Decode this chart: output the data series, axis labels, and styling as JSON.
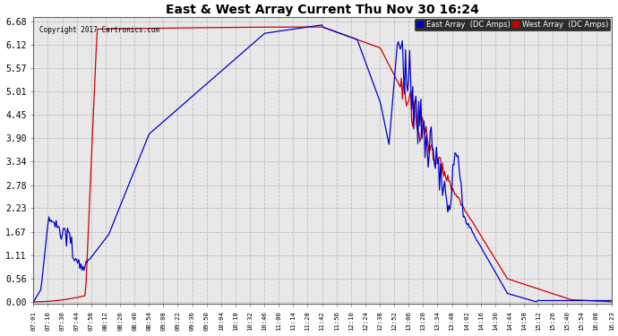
{
  "title": "East & West Array Current Thu Nov 30 16:24",
  "copyright": "Copyright 2017 Cartronics.com",
  "legend_east": "East Array  (DC Amps)",
  "legend_west": "West Array  (DC Amps)",
  "east_color": "#0000cc",
  "west_color": "#cc0000",
  "background_color": "#ffffff",
  "grid_color": "#bbbbbb",
  "plot_bg_color": "#e8e8e8",
  "yticks": [
    0.0,
    0.56,
    1.11,
    1.67,
    2.23,
    2.78,
    3.34,
    3.9,
    4.45,
    5.01,
    5.57,
    6.12,
    6.68
  ],
  "ymax": 6.68,
  "ymin": 0.0,
  "x_labels": [
    "07:01",
    "07:16",
    "07:30",
    "07:44",
    "07:58",
    "08:12",
    "08:26",
    "08:40",
    "08:54",
    "09:08",
    "09:22",
    "09:36",
    "09:50",
    "10:04",
    "10:18",
    "10:32",
    "10:46",
    "11:00",
    "11:14",
    "11:28",
    "11:42",
    "11:56",
    "12:10",
    "12:24",
    "12:38",
    "12:52",
    "13:06",
    "13:20",
    "13:34",
    "13:48",
    "14:02",
    "14:16",
    "14:30",
    "14:44",
    "14:58",
    "15:12",
    "15:26",
    "15:40",
    "15:54",
    "16:08",
    "16:23"
  ]
}
